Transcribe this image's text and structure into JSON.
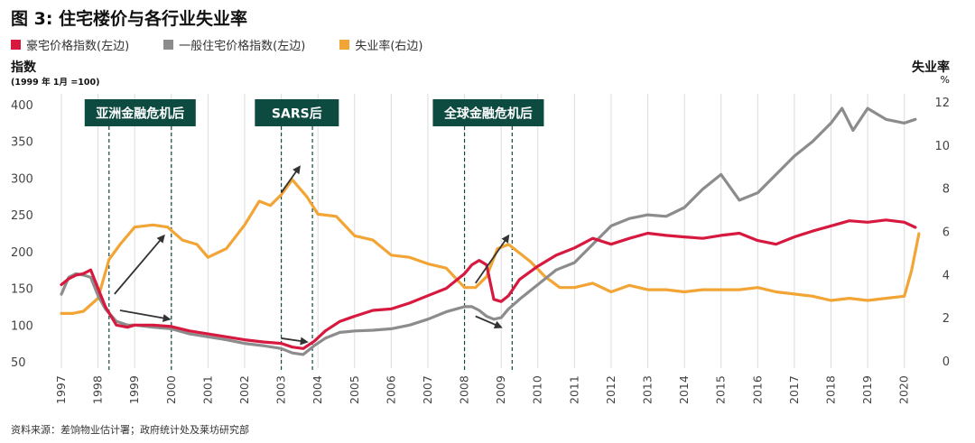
{
  "title": "图 3: 住宅楼价与各行业失业率",
  "legend": [
    {
      "label": "豪宅价格指数(左边)",
      "color": "#d7193f"
    },
    {
      "label": "一般住宅价格指数(左边)",
      "color": "#8c8c8c"
    },
    {
      "label": "失业率(右边)",
      "color": "#f2a535"
    }
  ],
  "left_axis": {
    "title": "指数",
    "subtitle": "(1999 年 1月 =100)"
  },
  "right_axis": {
    "title": "失业率",
    "unit": "%"
  },
  "source": "资料来源：差饷物业估计署；政府统计处及莱坊研究部",
  "annotations": [
    {
      "label": "亚洲金融危机后",
      "start": 1998.3,
      "end": 2000.0
    },
    {
      "label": "SARS后",
      "start": 2003.0,
      "end": 2003.85
    },
    {
      "label": "全球金融危机后",
      "start": 2008.0,
      "end": 2009.3
    }
  ],
  "colors": {
    "luxury": "#d7193f",
    "general": "#8c8c8c",
    "unemployment": "#f2a535",
    "annotation_box": "#0d4a3f",
    "arrow": "#333333",
    "grid": "#dcdcdc"
  },
  "chart_data": {
    "type": "line",
    "title": "图 3: 住宅楼价与各行业失业率",
    "x_ticks": [
      "1997",
      "1998",
      "1999",
      "2000",
      "2001",
      "2002",
      "2003",
      "2004",
      "2005",
      "2006",
      "2007",
      "2008",
      "2009",
      "2010",
      "2011",
      "2012",
      "2013",
      "2014",
      "2015",
      "2016",
      "2017",
      "2018",
      "2019",
      "2020"
    ],
    "xlim": [
      1997,
      2020.5
    ],
    "ylim_left": [
      50,
      400
    ],
    "yticks_left": [
      50,
      100,
      150,
      200,
      250,
      300,
      350,
      400
    ],
    "ylim_right": [
      0,
      12
    ],
    "yticks_right": [
      0,
      2,
      4,
      6,
      8,
      10,
      12
    ],
    "grid": "vertical",
    "series": [
      {
        "name": "豪宅价格指数(左边)",
        "axis": "left",
        "x": [
          1997,
          1997.2,
          1997.4,
          1997.6,
          1997.8,
          1998,
          1998.2,
          1998.5,
          1998.8,
          1999,
          1999.5,
          2000,
          2000.5,
          2001,
          2001.5,
          2002,
          2002.5,
          2003,
          2003.3,
          2003.6,
          2003.9,
          2004.2,
          2004.6,
          2005,
          2005.5,
          2006,
          2006.5,
          2007,
          2007.5,
          2008,
          2008.2,
          2008.4,
          2008.6,
          2008.8,
          2009,
          2009.2,
          2009.5,
          2010,
          2010.5,
          2011,
          2011.5,
          2012,
          2012.5,
          2013,
          2013.5,
          2014,
          2014.5,
          2015,
          2015.5,
          2016,
          2016.5,
          2017,
          2017.5,
          2018,
          2018.5,
          2019,
          2019.5,
          2020,
          2020.3
        ],
        "values": [
          155,
          163,
          168,
          170,
          175,
          150,
          125,
          100,
          97,
          100,
          100,
          98,
          92,
          88,
          84,
          80,
          77,
          75,
          70,
          68,
          78,
          92,
          105,
          112,
          120,
          122,
          130,
          140,
          150,
          170,
          182,
          188,
          182,
          135,
          132,
          140,
          162,
          180,
          195,
          205,
          218,
          210,
          218,
          225,
          222,
          220,
          218,
          222,
          225,
          215,
          210,
          220,
          228,
          235,
          242,
          240,
          243,
          240,
          233
        ]
      },
      {
        "name": "一般住宅价格指数(左边)",
        "axis": "left",
        "x": [
          1997,
          1997.2,
          1997.4,
          1997.6,
          1997.8,
          1998,
          1998.2,
          1998.5,
          1998.8,
          1999,
          1999.5,
          2000,
          2000.5,
          2001,
          2001.5,
          2002,
          2002.5,
          2003,
          2003.3,
          2003.6,
          2003.9,
          2004.2,
          2004.6,
          2005,
          2005.5,
          2006,
          2006.5,
          2007,
          2007.5,
          2008,
          2008.2,
          2008.4,
          2008.6,
          2008.8,
          2009,
          2009.2,
          2009.5,
          2010,
          2010.5,
          2011,
          2011.5,
          2012,
          2012.5,
          2013,
          2013.5,
          2014,
          2014.5,
          2015,
          2015.5,
          2016,
          2016.5,
          2017,
          2017.5,
          2018,
          2018.3,
          2018.6,
          2019,
          2019.5,
          2020,
          2020.3
        ],
        "values": [
          142,
          165,
          170,
          168,
          165,
          140,
          122,
          105,
          100,
          100,
          97,
          95,
          88,
          84,
          80,
          75,
          72,
          68,
          62,
          60,
          72,
          82,
          90,
          92,
          93,
          95,
          100,
          108,
          118,
          125,
          125,
          120,
          112,
          108,
          110,
          122,
          135,
          155,
          175,
          185,
          210,
          235,
          245,
          250,
          248,
          260,
          285,
          305,
          270,
          280,
          305,
          330,
          350,
          375,
          395,
          365,
          395,
          380,
          375,
          380
        ]
      },
      {
        "name": "失业率(右边)",
        "axis": "right",
        "x": [
          1997,
          1997.3,
          1997.6,
          1998,
          1998.3,
          1998.6,
          1999,
          1999.5,
          1999.9,
          2000.3,
          2000.7,
          2001,
          2001.5,
          2002,
          2002.4,
          2002.7,
          2003,
          2003.3,
          2003.5,
          2003.7,
          2004,
          2004.5,
          2005,
          2005.5,
          2006,
          2006.5,
          2007,
          2007.5,
          2008,
          2008.3,
          2008.6,
          2008.9,
          2009.2,
          2009.5,
          2009.8,
          2010.2,
          2010.6,
          2011,
          2011.5,
          2012,
          2012.5,
          2013,
          2013.5,
          2014,
          2014.5,
          2015,
          2015.5,
          2016,
          2016.5,
          2017,
          2017.5,
          2018,
          2018.5,
          2019,
          2019.5,
          2020,
          2020.2,
          2020.4
        ],
        "values": [
          2.2,
          2.2,
          2.3,
          2.9,
          4.7,
          5.4,
          6.2,
          6.3,
          6.2,
          5.6,
          5.4,
          4.8,
          5.2,
          6.3,
          7.4,
          7.2,
          7.7,
          8.4,
          8.0,
          7.6,
          6.8,
          6.7,
          5.8,
          5.6,
          4.9,
          4.8,
          4.5,
          4.3,
          3.4,
          3.4,
          3.9,
          5.2,
          5.4,
          5.0,
          4.6,
          3.9,
          3.4,
          3.4,
          3.6,
          3.2,
          3.5,
          3.3,
          3.3,
          3.2,
          3.3,
          3.3,
          3.3,
          3.4,
          3.2,
          3.1,
          3.0,
          2.8,
          2.9,
          2.8,
          2.9,
          3.0,
          4.2,
          5.9
        ]
      }
    ]
  }
}
